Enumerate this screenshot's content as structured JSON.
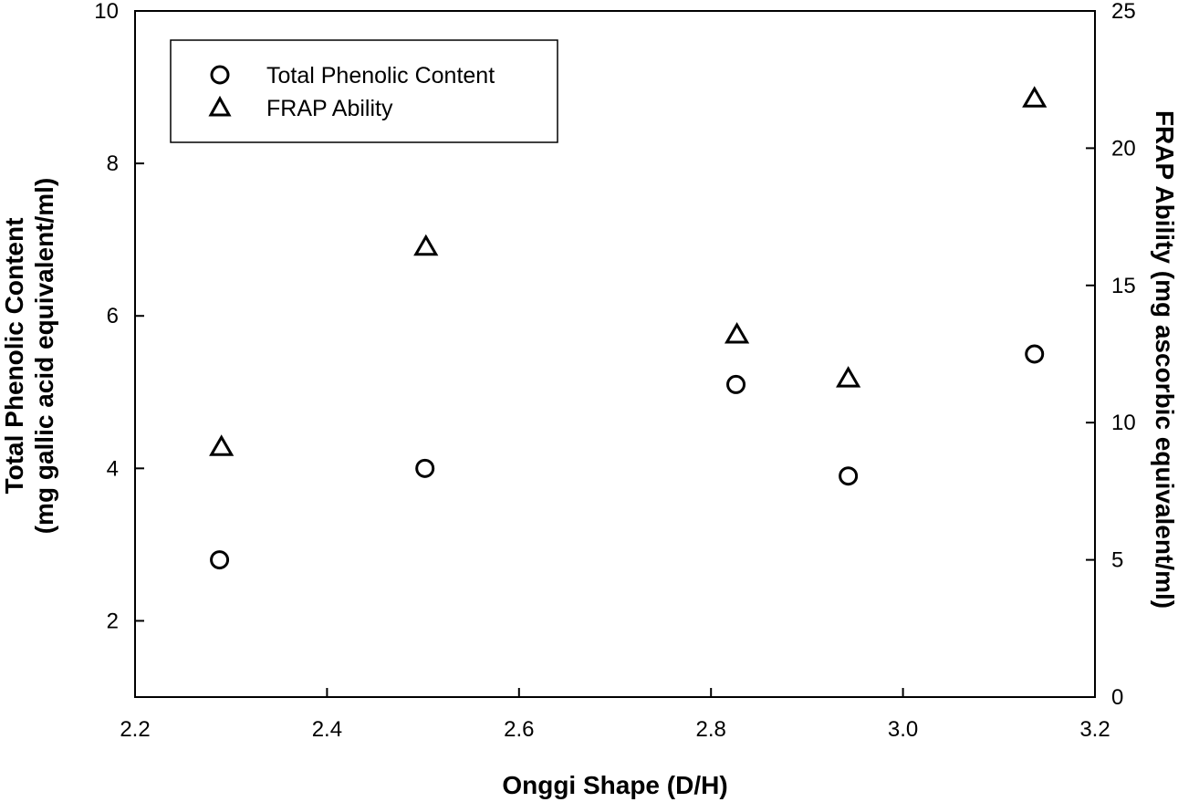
{
  "chart_data": {
    "type": "scatter",
    "xlabel": "Onggi Shape (D/H)",
    "ylabel_left_line1": "Total Phenolic Content",
    "ylabel_left_line2": "(mg gallic acid equivalent/ml)",
    "ylabel_right": "FRAP Ability (mg ascorbic equivalent/ml)",
    "xlim": [
      2.2,
      3.2
    ],
    "ylim_left": [
      1,
      10
    ],
    "ylim_right": [
      0,
      25
    ],
    "x_ticks": [
      "2.2",
      "2.4",
      "2.6",
      "2.8",
      "3.0",
      "3.2"
    ],
    "y_left_ticks": [
      "2",
      "4",
      "6",
      "8",
      "10"
    ],
    "y_right_ticks": [
      "0",
      "5",
      "10",
      "15",
      "20",
      "25"
    ],
    "grid": false,
    "legend_position": "top-left",
    "series": [
      {
        "name": "Total Phenolic Content",
        "marker": "circle",
        "axis": "left",
        "x": [
          2.288,
          2.502,
          2.826,
          2.943,
          3.137
        ],
        "y": [
          2.8,
          4.0,
          5.1,
          3.9,
          5.5
        ]
      },
      {
        "name": "FRAP Ability",
        "marker": "triangle",
        "axis": "right",
        "x": [
          2.29,
          2.503,
          2.827,
          2.943,
          3.137
        ],
        "y": [
          9.1,
          16.4,
          13.2,
          11.6,
          21.8
        ]
      }
    ]
  }
}
